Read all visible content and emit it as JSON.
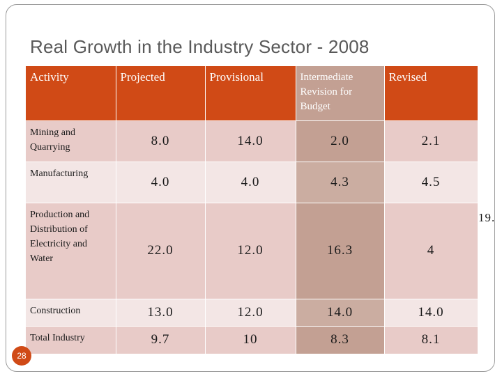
{
  "slide": {
    "title": "Real Growth in  the Industry Sector - 2008",
    "number": "28",
    "accent_color": "#d04a16",
    "overflow_text": "19."
  },
  "table": {
    "headers": [
      "Activity",
      "Projected",
      "Provisional",
      "Intermediate Revision for Budget",
      "Revised"
    ],
    "rows": [
      {
        "activity": "Mining and Quarrying",
        "projected": "8.0",
        "provisional": "14.0",
        "intermediate": "2.0",
        "revised": "2.1"
      },
      {
        "activity": "Manufacturing",
        "projected": "4.0",
        "provisional": "4.0",
        "intermediate": "4.3",
        "revised": "4.5"
      },
      {
        "activity": "Production and Distribution of Electricity and Water",
        "projected": "22.0",
        "provisional": "12.0",
        "intermediate": "16.3",
        "revised": "4"
      },
      {
        "activity": "Construction",
        "projected": "13.0",
        "provisional": "12.0",
        "intermediate": "14.0",
        "revised": "14.0"
      },
      {
        "activity": "Total Industry",
        "projected": "9.7",
        "provisional": "10",
        "intermediate": "8.3",
        "revised": "8.1"
      }
    ]
  }
}
